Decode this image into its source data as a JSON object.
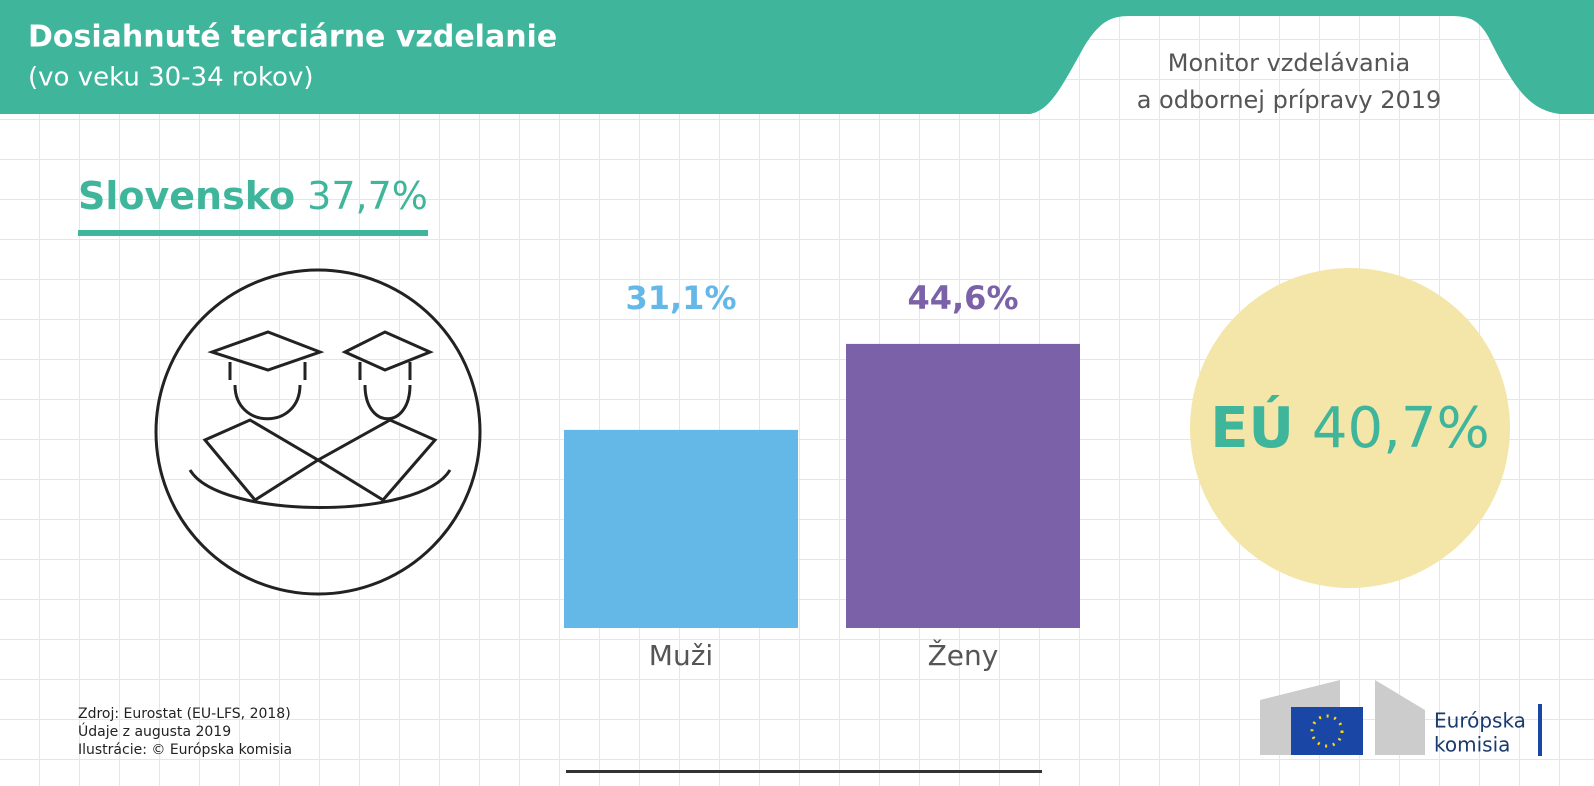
{
  "header": {
    "title": "Dosiahnuté terciárne vzdelanie",
    "subtitle": "(vo veku 30-34 rokov)",
    "publication": [
      "Monitor vzdelávania",
      "a odbornej prípravy 2019"
    ]
  },
  "country": {
    "name": "Slovensko",
    "value_label": "37,7%"
  },
  "chart_data": {
    "type": "bar",
    "categories": [
      "Muži",
      "Ženy"
    ],
    "values": [
      31.1,
      44.6
    ],
    "value_labels": [
      "31,1%",
      "44,6%"
    ],
    "colors": [
      "#63b8e8",
      "#7b61a8"
    ]
  },
  "eu": {
    "name": "EÚ",
    "value_label": "40,7%"
  },
  "footer": [
    "Zdroj: Eurostat (EU-LFS, 2018)",
    "Údaje z augusta 2019",
    "Ilustrácie: © Európska komisia"
  ],
  "logo": [
    "Európska",
    "komisia"
  ]
}
